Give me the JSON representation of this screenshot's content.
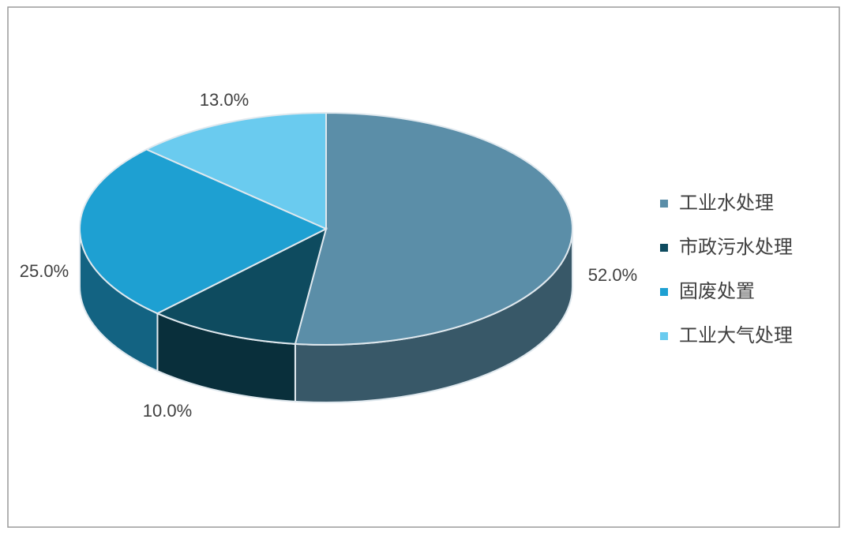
{
  "chart_data": {
    "type": "pie3d",
    "categories": [
      "工业水处理",
      "市政污水处理",
      "固废处置",
      "工业大气处理"
    ],
    "values": [
      52,
      10,
      25,
      13
    ],
    "value_labels": [
      "52.0%",
      "10.0%",
      "25.0%",
      "13.0%"
    ],
    "colors": [
      "#5b8ea8",
      "#0e4b5f",
      "#1ea0d2",
      "#6acbef"
    ],
    "legend": "right"
  }
}
